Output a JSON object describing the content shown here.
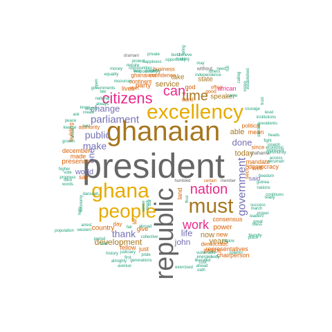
{
  "colors": {
    "gray": "#666666",
    "gold": "#A6761D",
    "yellow": "#E6AB02",
    "orange": "#D95F02",
    "purple": "#7570B3",
    "pink": "#E7298A",
    "teal": "#1B9E77",
    "green": "#66A61E"
  },
  "words": [
    {
      "text": "president",
      "color": "gray"
    },
    {
      "text": "ghanaian",
      "color": "gold"
    },
    {
      "text": "republic",
      "color": "gray"
    },
    {
      "text": "excellency",
      "color": "yellow"
    },
    {
      "text": "ghana",
      "color": "yellow"
    },
    {
      "text": "people",
      "color": "yellow"
    },
    {
      "text": "must",
      "color": "gold"
    },
    {
      "text": "nation",
      "color": "pink"
    },
    {
      "text": "citizens",
      "color": "pink"
    },
    {
      "text": "time",
      "color": "gold"
    },
    {
      "text": "can",
      "color": "pink"
    },
    {
      "text": "work",
      "color": "pink"
    },
    {
      "text": "government",
      "color": "purple"
    },
    {
      "text": "parliament",
      "color": "purple"
    },
    {
      "text": "public",
      "color": "purple"
    },
    {
      "text": "make",
      "color": "purple"
    },
    {
      "text": "change",
      "color": "purple"
    },
    {
      "text": "thank",
      "color": "purple"
    },
    {
      "text": "done",
      "color": "purple"
    },
    {
      "text": "development",
      "color": "gold"
    },
    {
      "text": "one",
      "color": "purple"
    },
    {
      "text": "life",
      "color": "purple"
    },
    {
      "text": "john",
      "color": "purple"
    },
    {
      "text": "years",
      "color": "gold"
    },
    {
      "text": "now",
      "color": "gold"
    },
    {
      "text": "today",
      "color": "gold"
    },
    {
      "text": "service",
      "color": "gold"
    },
    {
      "text": "speaker",
      "color": "gold"
    },
    {
      "text": "african",
      "color": "pink"
    },
    {
      "text": "take",
      "color": "gold"
    },
    {
      "text": "state",
      "color": "gold"
    },
    {
      "text": "party",
      "color": "orange"
    },
    {
      "text": "lives",
      "color": "orange"
    },
    {
      "text": "world",
      "color": "purple"
    },
    {
      "text": "able",
      "color": "gold"
    },
    {
      "text": "mean",
      "color": "orange"
    },
    {
      "text": "power",
      "color": "orange"
    },
    {
      "text": "land",
      "color": "orange"
    },
    {
      "text": "new",
      "color": "orange"
    },
    {
      "text": "said",
      "color": "purple"
    },
    {
      "text": "well",
      "color": "orange"
    },
    {
      "text": "consensus",
      "color": "orange"
    },
    {
      "text": "representatives",
      "color": "orange"
    },
    {
      "text": "chairperson",
      "color": "orange"
    },
    {
      "text": "justice",
      "color": "orange"
    },
    {
      "text": "democratic",
      "color": "orange"
    },
    {
      "text": "fellow",
      "color": "orange"
    },
    {
      "text": "just",
      "color": "orange"
    },
    {
      "text": "give",
      "color": "orange"
    },
    {
      "text": "let",
      "color": "orange"
    },
    {
      "text": "country",
      "color": "orange"
    },
    {
      "text": "day",
      "color": "orange"
    },
    {
      "text": "presence",
      "color": "orange"
    },
    {
      "text": "made",
      "color": "orange"
    },
    {
      "text": "december",
      "color": "orange"
    },
    {
      "text": "say",
      "color": "orange"
    },
    {
      "text": "mandate",
      "color": "orange"
    },
    {
      "text": "democracy",
      "color": "orange"
    },
    {
      "text": "since",
      "color": "orange"
    },
    {
      "text": "god",
      "color": "orange"
    },
    {
      "text": "political",
      "color": "orange"
    },
    {
      "text": "business",
      "color": "orange"
    },
    {
      "text": "confidence",
      "color": "orange"
    },
    {
      "text": "ghanaians",
      "color": "orange"
    },
    {
      "text": "continent",
      "color": "orange"
    },
    {
      "text": "start",
      "color": "orange"
    },
    {
      "text": "building",
      "color": "orange"
    },
    {
      "text": "authority",
      "color": "orange"
    },
    {
      "text": "stand",
      "color": "orange"
    },
    {
      "text": "good",
      "color": "orange"
    },
    {
      "text": "office",
      "color": "orange"
    },
    {
      "text": "sector",
      "color": "orange"
    },
    {
      "text": "certain",
      "color": "orange"
    },
    {
      "text": "member",
      "color": "gray"
    },
    {
      "text": "humbled",
      "color": "gray"
    },
    {
      "text": "dramani",
      "color": "gray"
    },
    {
      "text": "mahama",
      "color": "gray"
    },
    {
      "text": "without",
      "color": "gray"
    },
    {
      "text": "independence",
      "color": "teal"
    },
    {
      "text": "may",
      "color": "teal"
    },
    {
      "text": "making",
      "color": "teal"
    },
    {
      "text": "opportunity",
      "color": "teal"
    },
    {
      "text": "believe",
      "color": "teal"
    },
    {
      "text": "bring",
      "color": "teal"
    },
    {
      "text": "build",
      "color": "teal"
    },
    {
      "text": "private",
      "color": "teal"
    },
    {
      "text": "protect",
      "color": "teal"
    },
    {
      "text": "happiness",
      "color": "teal"
    },
    {
      "text": "communities",
      "color": "teal"
    },
    {
      "text": "require",
      "color": "teal"
    },
    {
      "text": "money",
      "color": "teal"
    },
    {
      "text": "face",
      "color": "teal"
    },
    {
      "text": "responsibility",
      "color": "teal"
    },
    {
      "text": "governments",
      "color": "teal"
    },
    {
      "text": "law",
      "color": "teal"
    },
    {
      "text": "resources",
      "color": "teal"
    },
    {
      "text": "open",
      "color": "teal"
    },
    {
      "text": "national",
      "color": "teal"
    },
    {
      "text": "always",
      "color": "teal"
    },
    {
      "text": "know",
      "color": "teal"
    },
    {
      "text": "create",
      "color": "teal"
    },
    {
      "text": "kwame",
      "color": "teal"
    },
    {
      "text": "growth",
      "color": "teal"
    },
    {
      "text": "peace",
      "color": "teal"
    },
    {
      "text": "africa",
      "color": "teal"
    },
    {
      "text": "higher",
      "color": "teal"
    },
    {
      "text": "vote",
      "color": "teal"
    },
    {
      "text": "progress",
      "color": "teal"
    },
    {
      "text": "words",
      "color": "teal"
    },
    {
      "text": "population",
      "color": "teal"
    },
    {
      "text": "third",
      "color": "teal"
    },
    {
      "text": "economy",
      "color": "teal"
    },
    {
      "text": "arrest",
      "color": "teal"
    },
    {
      "text": "western",
      "color": "teal"
    },
    {
      "text": "period",
      "color": "teal"
    },
    {
      "text": "hard",
      "color": "teal"
    },
    {
      "text": "history",
      "color": "teal"
    },
    {
      "text": "almighty",
      "color": "teal"
    },
    {
      "text": "avenue",
      "color": "teal"
    },
    {
      "text": "generations",
      "color": "teal"
    },
    {
      "text": "judiciary",
      "color": "teal"
    },
    {
      "text": "first",
      "color": "teal"
    },
    {
      "text": "pride",
      "color": "teal"
    },
    {
      "text": "collective",
      "color": "teal"
    },
    {
      "text": "fair",
      "color": "teal"
    },
    {
      "text": "abroad",
      "color": "teal"
    },
    {
      "text": "cost",
      "color": "teal"
    },
    {
      "text": "oath",
      "color": "teal"
    },
    {
      "text": "exercised",
      "color": "teal"
    },
    {
      "text": "liberated",
      "color": "teal"
    },
    {
      "text": "ahead",
      "color": "teal"
    },
    {
      "text": "energies",
      "color": "teal"
    },
    {
      "text": "vulnerable",
      "color": "teal"
    },
    {
      "text": "solemn",
      "color": "teal"
    },
    {
      "text": "body",
      "color": "teal"
    },
    {
      "text": "inspire",
      "color": "teal"
    },
    {
      "text": "place",
      "color": "teal"
    },
    {
      "text": "friendly",
      "color": "teal"
    },
    {
      "text": "bless",
      "color": "teal"
    },
    {
      "text": "success",
      "color": "teal"
    },
    {
      "text": "guinea",
      "color": "teal"
    },
    {
      "text": "freedom",
      "color": "teal"
    },
    {
      "text": "nations",
      "color": "teal"
    },
    {
      "text": "ready",
      "color": "teal"
    },
    {
      "text": "leaders",
      "color": "teal"
    },
    {
      "text": "march",
      "color": "teal"
    },
    {
      "text": "proper",
      "color": "teal"
    },
    {
      "text": "great",
      "color": "teal"
    },
    {
      "text": "continues",
      "color": "teal"
    },
    {
      "text": "nkrumah",
      "color": "teal"
    },
    {
      "text": "access",
      "color": "teal"
    },
    {
      "text": "economic",
      "color": "teal"
    },
    {
      "text": "represent",
      "color": "teal"
    },
    {
      "text": "community",
      "color": "teal"
    },
    {
      "text": "joseph",
      "color": "teal"
    },
    {
      "text": "heads",
      "color": "teal"
    },
    {
      "text": "fight",
      "color": "teal"
    },
    {
      "text": "elected",
      "color": "teal"
    },
    {
      "text": "presidents",
      "color": "teal"
    },
    {
      "text": "institutions",
      "color": "teal"
    },
    {
      "text": "level",
      "color": "teal"
    },
    {
      "text": "courage",
      "color": "teal"
    },
    {
      "text": "need",
      "color": "teal"
    },
    {
      "text": "others",
      "color": "teal"
    },
    {
      "text": "came",
      "color": "teal"
    },
    {
      "text": "calling",
      "color": "teal"
    },
    {
      "text": "vision",
      "color": "teal"
    },
    {
      "text": "established",
      "color": "teal"
    },
    {
      "text": "full",
      "color": "teal"
    },
    {
      "text": "trust",
      "color": "teal"
    },
    {
      "text": "equality",
      "color": "teal"
    },
    {
      "text": "property",
      "color": "teal"
    },
    {
      "text": "best",
      "color": "teal"
    },
    {
      "text": "ask",
      "color": "teal"
    },
    {
      "text": "restore",
      "color": "teal"
    },
    {
      "text": "sense",
      "color": "teal"
    },
    {
      "text": "black",
      "color": "teal"
    },
    {
      "text": "star",
      "color": "teal"
    },
    {
      "text": "thus",
      "color": "teal"
    },
    {
      "text": "dansoah",
      "color": "teal"
    },
    {
      "text": "help",
      "color": "teal"
    },
    {
      "text": "respect",
      "color": "teal"
    }
  ]
}
